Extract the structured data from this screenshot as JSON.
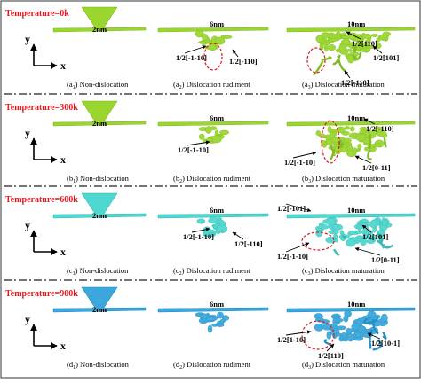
{
  "rows": [
    {
      "id": "a",
      "temperature_label": "Temperature=0k",
      "color": "#9ad62e",
      "color_dark": "#7cb81c",
      "panels": [
        {
          "depth": "2nm",
          "caption_pre": "(a",
          "caption_sub": "1",
          "caption_post": ") Non-dislocation",
          "labels": []
        },
        {
          "depth": "6nm",
          "caption_pre": "(a",
          "caption_sub": "2",
          "caption_post": ") Dislocation rudiment",
          "labels": [
            "1/2[-1-10]",
            "1/2[-110]"
          ]
        },
        {
          "depth": "10nm",
          "caption_pre": "(a",
          "caption_sub": "3",
          "caption_post": ") Dislocation maturation",
          "labels": [
            "1/2[110]",
            "1/2[101]",
            "1/2[-110]"
          ]
        }
      ]
    },
    {
      "id": "b",
      "temperature_label": "Temperature=300k",
      "color": "#9ad62e",
      "color_dark": "#7cb81c",
      "panels": [
        {
          "depth": "2nm",
          "caption_pre": "(b",
          "caption_sub": "1",
          "caption_post": ") Non-dislocation",
          "labels": []
        },
        {
          "depth": "6nm",
          "caption_pre": "(b",
          "caption_sub": "2",
          "caption_post": ") Dislocation rudiment",
          "labels": [
            "1/2[-1-10]"
          ]
        },
        {
          "depth": "10nm",
          "caption_pre": "(b",
          "caption_sub": "3",
          "caption_post": ") Dislocation maturation",
          "labels": [
            "1/2[-110]",
            "1/2[-1-10]",
            "1/2[0-11]"
          ]
        }
      ]
    },
    {
      "id": "c",
      "temperature_label": "Temperature=600k",
      "color": "#4fd8d0",
      "color_dark": "#2fb8b0",
      "panels": [
        {
          "depth": "2nm",
          "caption_pre": "(c",
          "caption_sub": "1",
          "caption_post": ") Non-dislocation",
          "labels": []
        },
        {
          "depth": "6nm",
          "caption_pre": "(c",
          "caption_sub": "2",
          "caption_post": ") Dislocation rudiment",
          "labels": [
            "1/2[-1-10]",
            "1/2[-110]"
          ]
        },
        {
          "depth": "10nm",
          "caption_pre": "(c",
          "caption_sub": "3",
          "caption_post": ") Dislocation maturation",
          "labels": [
            "1/2[-101]",
            "1/2[101]",
            "1/2[-1-10]",
            "1/2[0-11]"
          ]
        }
      ]
    },
    {
      "id": "d",
      "temperature_label": "Temperature=900k",
      "color": "#3aa8dc",
      "color_dark": "#1f88c0",
      "panels": [
        {
          "depth": "2nm",
          "caption_pre": "(d",
          "caption_sub": "1",
          "caption_post": ") Non-dislocation",
          "labels": []
        },
        {
          "depth": "6nm",
          "caption_pre": "(d",
          "caption_sub": "2",
          "caption_post": ") Dislocation rudiment",
          "labels": []
        },
        {
          "depth": "10nm",
          "caption_pre": "(d",
          "caption_sub": "3",
          "caption_post": ") Dislocation maturation",
          "labels": [
            "1/2[1-10]",
            "1/2[110]",
            "1/2[10-1]"
          ]
        }
      ]
    }
  ],
  "axes": {
    "y": "y",
    "x": "x"
  },
  "colors": {
    "temperature": "#e8141c",
    "dashed_circle": "#e8141c",
    "separator": "#222222"
  }
}
